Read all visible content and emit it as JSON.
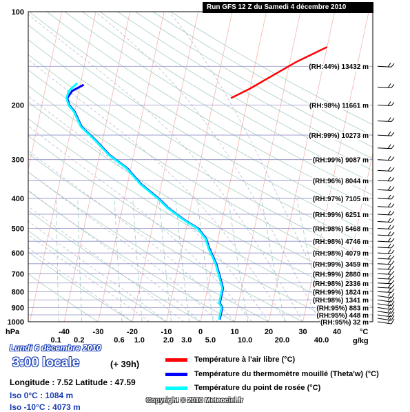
{
  "header": {
    "run_title": "Run GFS 12 Z du Samedi 4 décembre 2010"
  },
  "info": {
    "date": "Lundi 6 décembre 2010",
    "hour": "3:00 locale",
    "lead": "(+ 39h)",
    "coords": "Longitude : 7.52  Latitude : 47.59",
    "iso0": "Iso 0°C : 1084 m",
    "iso10": "Iso -10°C : 4073 m",
    "copyright": "Copyright © 2010 Meteociel.fr"
  },
  "legend": [
    {
      "label": "Température à l'air libre (°C)",
      "color": "#ff0000"
    },
    {
      "label": "Température du thermomètre mouillé (Theta'w) (°C)",
      "color": "#0000ff"
    },
    {
      "label": "Température du point de rosée (°C)",
      "color": "#00ffff"
    }
  ],
  "chart_data": {
    "type": "line",
    "title": "Run GFS 12 Z du Samedi 4 décembre 2010",
    "xlabel": "°C",
    "ylabel": "hPa",
    "x_unit": "°C",
    "y_unit": "hPa",
    "y_scale": "log",
    "y_reversed": true,
    "xlim": [
      -40,
      40
    ],
    "ylim": [
      1000,
      100
    ],
    "mixing_ratio_label": "g/kg",
    "x_ticks": [
      -40,
      -30,
      -20,
      -10,
      0,
      10,
      20,
      30,
      40
    ],
    "y_ticks": [
      1000,
      900,
      800,
      700,
      600,
      500,
      400,
      300,
      200,
      100
    ],
    "mixing_ratio_ticks": [
      "0.1",
      "0.2",
      "0.6",
      "1.0",
      "2.0",
      "3.0",
      "5.0",
      "10.0",
      "20.0",
      "40.0"
    ],
    "grid": true,
    "skew": "skew-T",
    "series": [
      {
        "name": "Température à l'air libre (°C)",
        "color": "#ff0000",
        "points": [
          [
            130,
            20
          ],
          [
            145,
            12
          ],
          [
            160,
            6
          ],
          [
            177,
            0
          ],
          [
            190,
            -5
          ]
        ]
      },
      {
        "name": "Température du thermomètre mouillé (Theta'w) (°C)",
        "color": "#0000ff",
        "points": [
          [
            985,
            5.5
          ],
          [
            960,
            5.5
          ],
          [
            930,
            5.5
          ],
          [
            900,
            5.5
          ],
          [
            870,
            4.5
          ],
          [
            830,
            4.5
          ],
          [
            780,
            4.5
          ],
          [
            720,
            3.0
          ],
          [
            650,
            1.0
          ],
          [
            580,
            -2.0
          ],
          [
            540,
            -3.5
          ],
          [
            500,
            -6.5
          ],
          [
            470,
            -11.0
          ],
          [
            430,
            -16.5
          ],
          [
            400,
            -20.0
          ],
          [
            360,
            -26.0
          ],
          [
            320,
            -31.0
          ],
          [
            290,
            -37.0
          ],
          [
            260,
            -42.0
          ],
          [
            235,
            -47.0
          ],
          [
            210,
            -50.0
          ],
          [
            200,
            -52.0
          ],
          [
            190,
            -53.0
          ],
          [
            180,
            -52.0
          ],
          [
            172,
            -49.0
          ]
        ]
      },
      {
        "name": "Température du point de rosée (°C)",
        "color": "#00ffff",
        "points": [
          [
            985,
            5.3
          ],
          [
            960,
            5.3
          ],
          [
            930,
            5.3
          ],
          [
            900,
            5.3
          ],
          [
            870,
            4.3
          ],
          [
            830,
            4.3
          ],
          [
            780,
            4.3
          ],
          [
            720,
            2.8
          ],
          [
            650,
            0.8
          ],
          [
            580,
            -2.2
          ],
          [
            540,
            -3.7
          ],
          [
            500,
            -6.7
          ],
          [
            470,
            -11.2
          ],
          [
            430,
            -16.7
          ],
          [
            400,
            -20.2
          ],
          [
            360,
            -26.2
          ],
          [
            320,
            -31.2
          ],
          [
            290,
            -37.2
          ],
          [
            260,
            -42.2
          ],
          [
            235,
            -47.2
          ],
          [
            210,
            -50.2
          ],
          [
            200,
            -52.2
          ],
          [
            190,
            -53.2
          ],
          [
            180,
            -53.0
          ],
          [
            170,
            -51.0
          ]
        ]
      }
    ],
    "levels": [
      {
        "p": 150,
        "label": "(RH:44%) 13432 m"
      },
      {
        "p": 200,
        "label": "(RH:98%) 11661 m"
      },
      {
        "p": 250,
        "label": "(RH:99%) 10273 m"
      },
      {
        "p": 300,
        "label": "(RH:99%) 9087 m"
      },
      {
        "p": 350,
        "label": "(RH:96%) 8044 m"
      },
      {
        "p": 400,
        "label": "(RH:97%) 7105 m"
      },
      {
        "p": 450,
        "label": "(RH:99%) 6251 m"
      },
      {
        "p": 500,
        "label": "(RH:98%) 5468 m"
      },
      {
        "p": 550,
        "label": "(RH:98%) 4746 m"
      },
      {
        "p": 600,
        "label": "(RH:98%) 4079 m"
      },
      {
        "p": 650,
        "label": "(RH:99%) 3459 m"
      },
      {
        "p": 700,
        "label": "(RH:99%) 2880 m"
      },
      {
        "p": 750,
        "label": "(RH:98%) 2336 m"
      },
      {
        "p": 800,
        "label": "(RH:99%) 1824 m"
      },
      {
        "p": 850,
        "label": "(RH:98%) 1341 m"
      },
      {
        "p": 900,
        "label": "(RH:95%) 883 m"
      },
      {
        "p": 950,
        "label": "(RH:95%) 448 m"
      },
      {
        "p": 1000,
        "label": "(RH:95%) 32 m"
      }
    ]
  }
}
